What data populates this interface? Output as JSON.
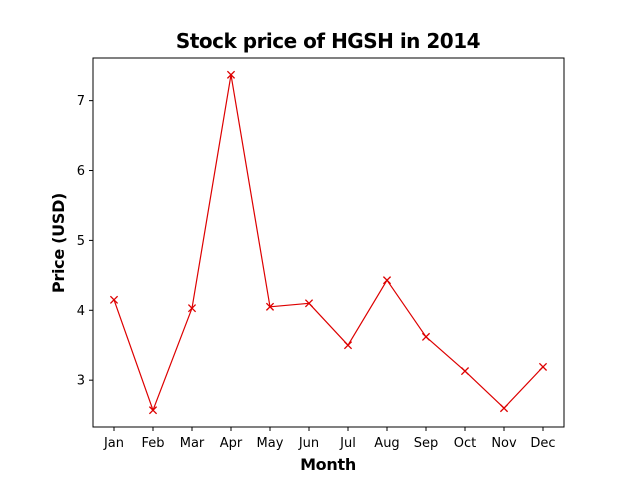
{
  "chart_data": {
    "type": "line",
    "title": "Stock price of HGSH in 2014",
    "xlabel": "Month",
    "ylabel": "Price (USD)",
    "categories": [
      "Jan",
      "Feb",
      "Mar",
      "Apr",
      "May",
      "Jun",
      "Jul",
      "Aug",
      "Sep",
      "Oct",
      "Nov",
      "Dec"
    ],
    "series": [
      {
        "values": [
          4.15,
          2.57,
          4.03,
          7.37,
          4.05,
          4.1,
          3.5,
          4.43,
          3.62,
          3.13,
          2.6,
          3.19
        ],
        "color": "#dd0000",
        "marker": "x"
      }
    ],
    "yticks": [
      3,
      4,
      5,
      6,
      7
    ],
    "ylim": [
      2.33,
      7.61
    ],
    "grid": false,
    "legend": "none"
  }
}
